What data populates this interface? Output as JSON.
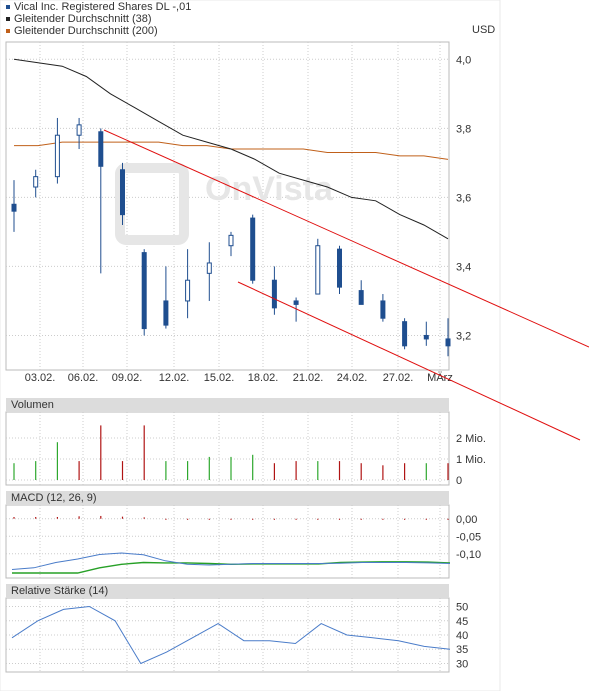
{
  "legend": [
    {
      "label": "Vical Inc. Registered Shares DL -,01",
      "color": "#1f4e8f"
    },
    {
      "label": "Gleitender Durchschnitt (38)",
      "color": "#222222"
    },
    {
      "label": "Gleitender Durchschnitt (200)",
      "color": "#c0601a"
    }
  ],
  "unit_label": "USD",
  "watermark": "OnVista",
  "colors": {
    "candle": "#1f4e8f",
    "ma38": "#222222",
    "ma200": "#c0601a",
    "trend": "#e01010",
    "vol_up": "#2ea82e",
    "vol_down": "#b01414",
    "macd_line": "#4a7cc9",
    "macd_signal": "#27a027",
    "rsi": "#4a7cc9",
    "grid": "#cccccc"
  },
  "panels": {
    "volume": {
      "title": "Volumen"
    },
    "macd": {
      "title": "MACD (12, 26, 9)"
    },
    "rsi": {
      "title": "Relative Stärke (14)"
    }
  },
  "chart_data": [
    {
      "type": "candlestick",
      "name": "price",
      "x_ticks": [
        "03.02.",
        "06.02.",
        "09.02.",
        "12.02.",
        "15.02.",
        "18.02.",
        "21.02.",
        "24.02.",
        "27.02.",
        "MÄrz"
      ],
      "y_ticks": [
        3.2,
        3.4,
        3.6,
        3.8,
        4.0
      ],
      "ylim": [
        3.1,
        4.05
      ],
      "candles": [
        {
          "open": 3.58,
          "high": 3.65,
          "low": 3.5,
          "close": 3.56
        },
        {
          "open": 3.63,
          "high": 3.68,
          "low": 3.6,
          "close": 3.66
        },
        {
          "open": 3.66,
          "high": 3.83,
          "low": 3.64,
          "close": 3.78
        },
        {
          "open": 3.78,
          "high": 3.83,
          "low": 3.74,
          "close": 3.81
        },
        {
          "open": 3.79,
          "high": 3.8,
          "low": 3.38,
          "close": 3.69
        },
        {
          "open": 3.68,
          "high": 3.7,
          "low": 3.52,
          "close": 3.55
        },
        {
          "open": 3.44,
          "high": 3.45,
          "low": 3.2,
          "close": 3.22
        },
        {
          "open": 3.3,
          "high": 3.4,
          "low": 3.22,
          "close": 3.23
        },
        {
          "open": 3.3,
          "high": 3.45,
          "low": 3.25,
          "close": 3.36
        },
        {
          "open": 3.38,
          "high": 3.47,
          "low": 3.3,
          "close": 3.41
        },
        {
          "open": 3.46,
          "high": 3.5,
          "low": 3.43,
          "close": 3.49
        },
        {
          "open": 3.54,
          "high": 3.55,
          "low": 3.35,
          "close": 3.36
        },
        {
          "open": 3.36,
          "high": 3.4,
          "low": 3.26,
          "close": 3.28
        },
        {
          "open": 3.3,
          "high": 3.31,
          "low": 3.24,
          "close": 3.29
        },
        {
          "open": 3.32,
          "high": 3.48,
          "low": 3.32,
          "close": 3.46
        },
        {
          "open": 3.45,
          "high": 3.46,
          "low": 3.32,
          "close": 3.34
        },
        {
          "open": 3.33,
          "high": 3.36,
          "low": 3.29,
          "close": 3.29
        },
        {
          "open": 3.3,
          "high": 3.32,
          "low": 3.24,
          "close": 3.25
        },
        {
          "open": 3.24,
          "high": 3.25,
          "low": 3.16,
          "close": 3.17
        },
        {
          "open": 3.2,
          "high": 3.24,
          "low": 3.17,
          "close": 3.19
        },
        {
          "open": 3.19,
          "high": 3.25,
          "low": 3.14,
          "close": 3.17
        }
      ],
      "series": [
        {
          "name": "Gleitender Durchschnitt (38)",
          "values": [
            4.0,
            3.99,
            3.98,
            3.95,
            3.9,
            3.86,
            3.82,
            3.78,
            3.76,
            3.74,
            3.71,
            3.67,
            3.65,
            3.63,
            3.6,
            3.59,
            3.55,
            3.52,
            3.48
          ]
        },
        {
          "name": "Gleitender Durchschnitt (200)",
          "values": [
            3.75,
            3.75,
            3.76,
            3.76,
            3.76,
            3.76,
            3.76,
            3.75,
            3.75,
            3.74,
            3.74,
            3.74,
            3.74,
            3.73,
            3.73,
            3.73,
            3.72,
            3.72,
            3.71
          ]
        }
      ]
    },
    {
      "type": "bar",
      "name": "volume",
      "y_ticks": [
        "2 Mio.",
        "1 Mio.",
        "0"
      ],
      "ylim": [
        0,
        3
      ],
      "values": [
        0.8,
        0.9,
        1.8,
        0.9,
        2.6,
        0.9,
        2.6,
        0.9,
        0.9,
        1.1,
        1.1,
        1.2,
        0.8,
        0.9,
        0.9,
        0.9,
        0.8,
        0.7,
        0.8,
        0.8,
        0.8
      ],
      "directions": [
        "up",
        "up",
        "up",
        "down",
        "down",
        "down",
        "down",
        "up",
        "up",
        "up",
        "up",
        "up",
        "down",
        "down",
        "up",
        "down",
        "down",
        "down",
        "down",
        "up",
        "down"
      ]
    },
    {
      "type": "line",
      "name": "macd",
      "y_ticks": [
        "0,00",
        "-0,05",
        "-0,10"
      ],
      "ylim": [
        -0.155,
        0.025
      ],
      "histogram": [
        0.005,
        0.005,
        0.005,
        0.007,
        0.008,
        0.006,
        0.004,
        -0.003,
        -0.003,
        -0.003,
        -0.003,
        -0.003,
        -0.003,
        -0.003,
        -0.003,
        -0.003,
        -0.003,
        -0.003,
        -0.003,
        -0.003,
        -0.003
      ],
      "series": [
        {
          "name": "MACD",
          "values": [
            -0.145,
            -0.14,
            -0.125,
            -0.115,
            -0.102,
            -0.098,
            -0.103,
            -0.12,
            -0.13,
            -0.132,
            -0.13,
            -0.128,
            -0.128,
            -0.128,
            -0.128,
            -0.127,
            -0.125,
            -0.125,
            -0.125,
            -0.126,
            -0.128
          ]
        },
        {
          "name": "Signal",
          "values": [
            -0.155,
            -0.155,
            -0.155,
            -0.155,
            -0.14,
            -0.13,
            -0.125,
            -0.126,
            -0.126,
            -0.128,
            -0.13,
            -0.129,
            -0.129,
            -0.129,
            -0.129,
            -0.125,
            -0.124,
            -0.123,
            -0.123,
            -0.124,
            -0.126
          ]
        }
      ]
    },
    {
      "type": "line",
      "name": "rsi",
      "y_ticks": [
        50,
        45,
        40,
        35,
        30
      ],
      "ylim": [
        27,
        53
      ],
      "values": [
        39,
        45,
        49,
        50,
        45,
        30,
        34,
        39,
        44,
        38,
        38,
        37,
        44,
        40,
        39,
        38,
        36,
        35
      ]
    }
  ]
}
